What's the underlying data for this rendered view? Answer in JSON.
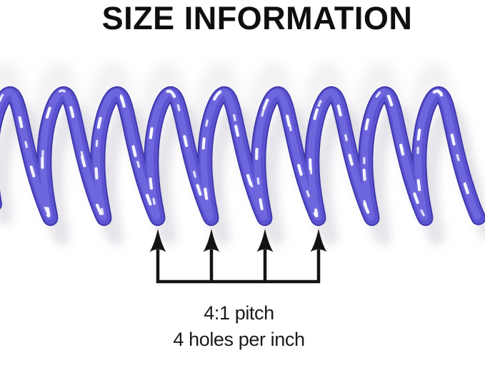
{
  "title": "SIZE INFORMATION",
  "coil": {
    "label": "plastic spiral binding coil",
    "turns_visible": 9,
    "colors": {
      "edge": "#4038ab",
      "body": "#5b53d0",
      "light": "#7068de",
      "glint": "#ffffff",
      "shadow": "#c9c9d4",
      "shadow_faint": "#dadae0"
    }
  },
  "annotation": {
    "arrows": 4,
    "color": "#151213",
    "pitch_line1": "4:1 pitch",
    "pitch_line2": "4 holes per inch"
  }
}
